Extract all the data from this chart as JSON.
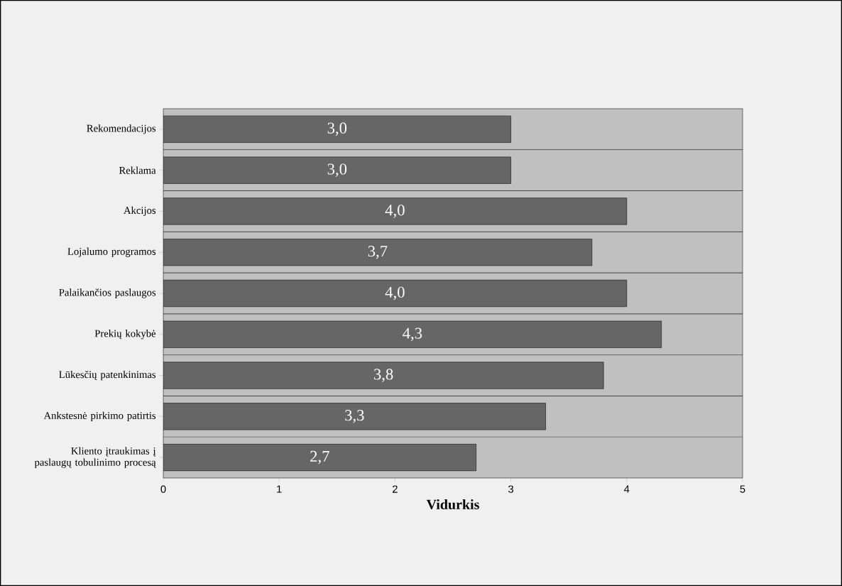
{
  "chart_data": {
    "type": "bar",
    "orientation": "horizontal",
    "xlabel": "Vidurkis",
    "categories": [
      "Rekomendacijos",
      "Reklama",
      "Akcijos",
      "Lojalumo programos",
      "Palaikančios paslaugos",
      "Prekių kokybė",
      "Lūkesčių patenkinimas",
      "Ankstesnė pirkimo patirtis",
      "Kliento įtraukimas į paslaugų tobulinimo procesą"
    ],
    "values": [
      3.0,
      3.0,
      4.0,
      3.7,
      4.0,
      4.3,
      3.8,
      3.3,
      2.7
    ],
    "value_labels": [
      "3,0",
      "3,0",
      "4,0",
      "3,7",
      "4,0",
      "4,3",
      "3,8",
      "3,3",
      "2,7"
    ],
    "color": "#666666",
    "xlim": [
      0,
      5
    ],
    "xticks": [
      0,
      1,
      2,
      3,
      4,
      5
    ]
  }
}
